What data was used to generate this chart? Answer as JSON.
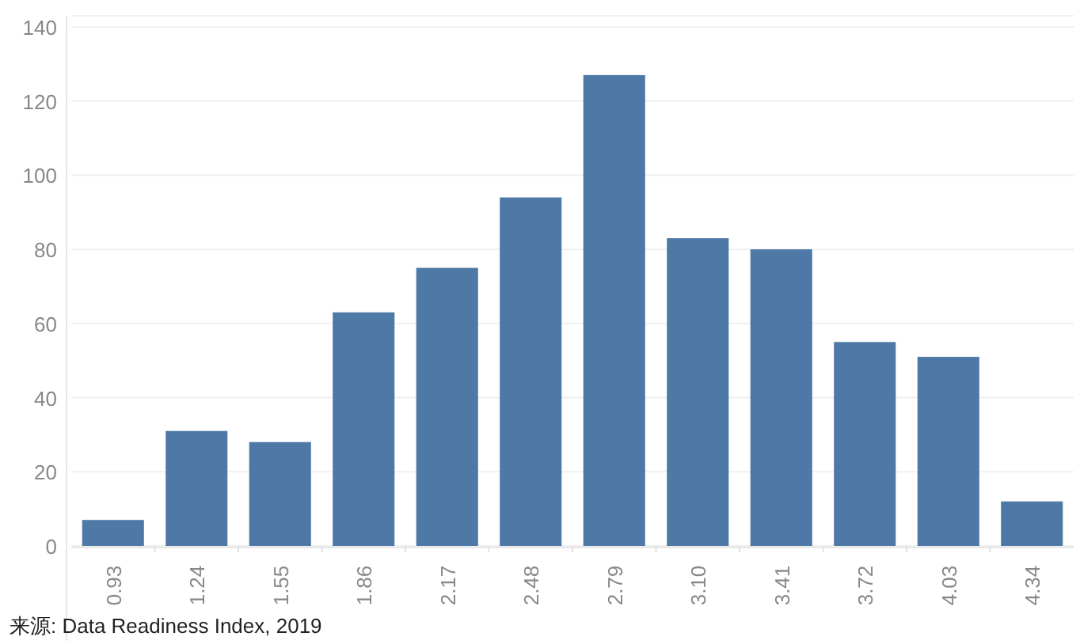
{
  "chart_data": {
    "type": "bar",
    "categories": [
      "0.93",
      "1.24",
      "1.55",
      "1.86",
      "2.17",
      "2.48",
      "2.79",
      "3.10",
      "3.41",
      "3.72",
      "4.03",
      "4.34"
    ],
    "values": [
      7,
      31,
      28,
      63,
      75,
      94,
      127,
      83,
      80,
      55,
      51,
      12
    ],
    "color": "#4e79a7",
    "ylim": [
      0,
      140
    ],
    "yticks": [
      0,
      20,
      40,
      60,
      80,
      100,
      120,
      140
    ],
    "grid": "y",
    "annotations": [
      "来源: Data Readiness Index, 2019"
    ]
  }
}
